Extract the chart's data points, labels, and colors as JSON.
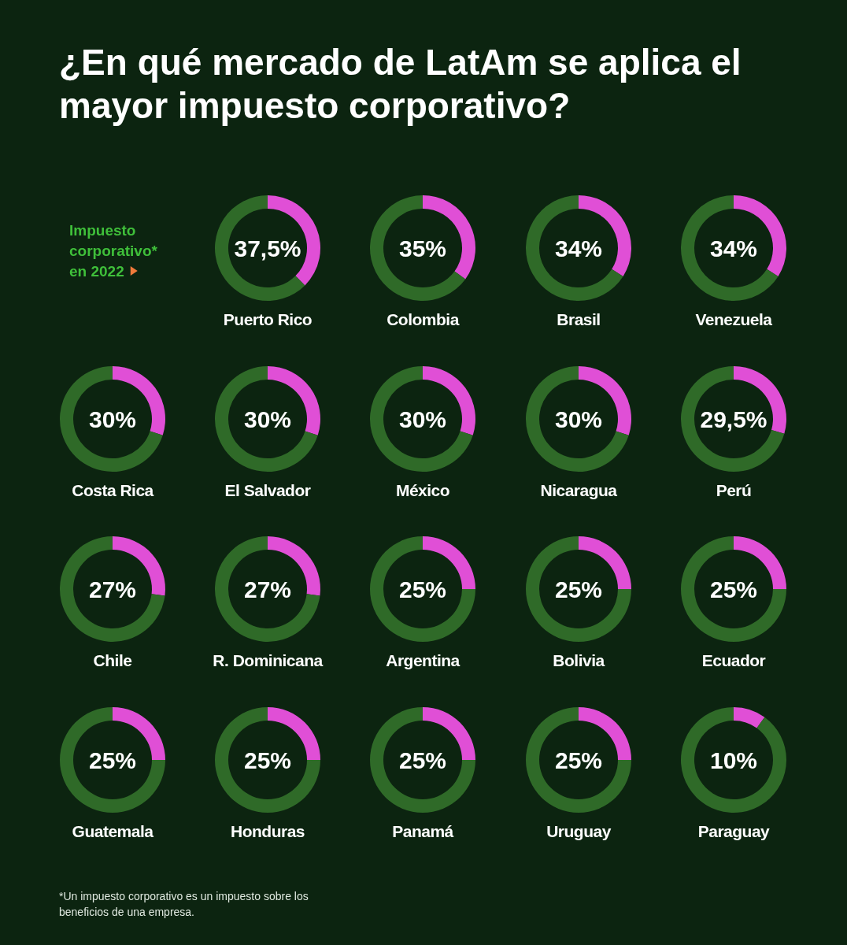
{
  "chart_data": [
    {
      "type": "other",
      "title": "¿En qué mercado de LatAm se aplica el mayor impuesto corporativo?",
      "subtitle": "Impuesto corporativo* en 2022",
      "annotations": [
        "*Un impuesto corporativo es un impuesto sobre los beneficios de una empresa."
      ]
    },
    {
      "type": "donut",
      "title": "Puerto Rico",
      "categories": [
        null,
        null
      ],
      "values": [
        37.5,
        62.5
      ],
      "colors": [
        "#e04fd6",
        "#2f6a28"
      ],
      "value_labels": [
        "37,5%",
        null
      ]
    },
    {
      "type": "donut",
      "title": "Colombia",
      "categories": [
        null,
        null
      ],
      "values": [
        35,
        65
      ],
      "colors": [
        "#e04fd6",
        "#2f6a28"
      ],
      "value_labels": [
        "35%",
        null
      ]
    },
    {
      "type": "donut",
      "title": "Brasil",
      "categories": [
        null,
        null
      ],
      "values": [
        34,
        66
      ],
      "colors": [
        "#e04fd6",
        "#2f6a28"
      ],
      "value_labels": [
        "34%",
        null
      ]
    },
    {
      "type": "donut",
      "title": "Venezuela",
      "categories": [
        null,
        null
      ],
      "values": [
        34,
        66
      ],
      "colors": [
        "#e04fd6",
        "#2f6a28"
      ],
      "value_labels": [
        "34%",
        null
      ]
    },
    {
      "type": "donut",
      "title": "Costa Rica",
      "categories": [
        null,
        null
      ],
      "values": [
        30,
        70
      ],
      "colors": [
        "#e04fd6",
        "#2f6a28"
      ],
      "value_labels": [
        "30%",
        null
      ]
    },
    {
      "type": "donut",
      "title": "El Salvador",
      "categories": [
        null,
        null
      ],
      "values": [
        30,
        70
      ],
      "colors": [
        "#e04fd6",
        "#2f6a28"
      ],
      "value_labels": [
        "30%",
        null
      ]
    },
    {
      "type": "donut",
      "title": "México",
      "categories": [
        null,
        null
      ],
      "values": [
        30,
        70
      ],
      "colors": [
        "#e04fd6",
        "#2f6a28"
      ],
      "value_labels": [
        "30%",
        null
      ]
    },
    {
      "type": "donut",
      "title": "Nicaragua",
      "categories": [
        null,
        null
      ],
      "values": [
        30,
        70
      ],
      "colors": [
        "#e04fd6",
        "#2f6a28"
      ],
      "value_labels": [
        "30%",
        null
      ]
    },
    {
      "type": "donut",
      "title": "Perú",
      "categories": [
        null,
        null
      ],
      "values": [
        29.5,
        70.5
      ],
      "colors": [
        "#e04fd6",
        "#2f6a28"
      ],
      "value_labels": [
        "29,5%",
        null
      ]
    },
    {
      "type": "donut",
      "title": "Chile",
      "categories": [
        null,
        null
      ],
      "values": [
        27,
        73
      ],
      "colors": [
        "#e04fd6",
        "#2f6a28"
      ],
      "value_labels": [
        "27%",
        null
      ]
    },
    {
      "type": "donut",
      "title": "R. Dominicana",
      "categories": [
        null,
        null
      ],
      "values": [
        27,
        73
      ],
      "colors": [
        "#e04fd6",
        "#2f6a28"
      ],
      "value_labels": [
        "27%",
        null
      ]
    },
    {
      "type": "donut",
      "title": "Argentina",
      "categories": [
        null,
        null
      ],
      "values": [
        25,
        75
      ],
      "colors": [
        "#e04fd6",
        "#2f6a28"
      ],
      "value_labels": [
        "25%",
        null
      ]
    },
    {
      "type": "donut",
      "title": "Bolivia",
      "categories": [
        null,
        null
      ],
      "values": [
        25,
        75
      ],
      "colors": [
        "#e04fd6",
        "#2f6a28"
      ],
      "value_labels": [
        "25%",
        null
      ]
    },
    {
      "type": "donut",
      "title": "Ecuador",
      "categories": [
        null,
        null
      ],
      "values": [
        25,
        75
      ],
      "colors": [
        "#e04fd6",
        "#2f6a28"
      ],
      "value_labels": [
        "25%",
        null
      ]
    },
    {
      "type": "donut",
      "title": "Guatemala",
      "categories": [
        null,
        null
      ],
      "values": [
        25,
        75
      ],
      "colors": [
        "#e04fd6",
        "#2f6a28"
      ],
      "value_labels": [
        "25%",
        null
      ]
    },
    {
      "type": "donut",
      "title": "Honduras",
      "categories": [
        null,
        null
      ],
      "values": [
        25,
        75
      ],
      "colors": [
        "#e04fd6",
        "#2f6a28"
      ],
      "value_labels": [
        "25%",
        null
      ]
    },
    {
      "type": "donut",
      "title": "Panamá",
      "categories": [
        null,
        null
      ],
      "values": [
        25,
        75
      ],
      "colors": [
        "#e04fd6",
        "#2f6a28"
      ],
      "value_labels": [
        "25%",
        null
      ]
    },
    {
      "type": "donut",
      "title": "Uruguay",
      "categories": [
        null,
        null
      ],
      "values": [
        25,
        75
      ],
      "colors": [
        "#e04fd6",
        "#2f6a28"
      ],
      "value_labels": [
        "25%",
        null
      ]
    },
    {
      "type": "donut",
      "title": "Paraguay",
      "categories": [
        null,
        null
      ],
      "values": [
        10,
        90
      ],
      "colors": [
        "#e04fd6",
        "#2f6a28"
      ],
      "value_labels": [
        "10%",
        null
      ]
    }
  ]
}
